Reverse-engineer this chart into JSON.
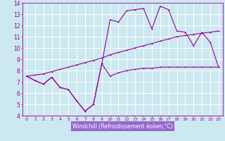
{
  "xlabel": "Windchill (Refroidissement éolien,°C)",
  "background_color": "#cce8f0",
  "grid_color": "#ffffff",
  "line_color": "#990099",
  "xlabel_bg": "#9966cc",
  "xlabel_fg": "#ffffff",
  "xlim": [
    -0.5,
    23.5
  ],
  "ylim": [
    4,
    14
  ],
  "xticks": [
    0,
    1,
    2,
    3,
    4,
    5,
    6,
    7,
    8,
    9,
    10,
    11,
    12,
    13,
    14,
    15,
    16,
    17,
    18,
    19,
    20,
    21,
    22,
    23
  ],
  "yticks": [
    4,
    5,
    6,
    7,
    8,
    9,
    10,
    11,
    12,
    13,
    14
  ],
  "line1_x": [
    0,
    1,
    2,
    3,
    4,
    5,
    6,
    7,
    8,
    9,
    10,
    11,
    12,
    13,
    14,
    15,
    16,
    17,
    18,
    19,
    20,
    21,
    22,
    23
  ],
  "line1_y": [
    7.5,
    7.1,
    6.8,
    7.4,
    6.5,
    6.3,
    5.3,
    4.4,
    5.0,
    8.6,
    7.5,
    7.8,
    8.0,
    8.1,
    8.2,
    8.2,
    8.3,
    8.3,
    8.3,
    8.3,
    8.3,
    8.3,
    8.3,
    8.3
  ],
  "line2_x": [
    0,
    1,
    2,
    3,
    4,
    5,
    6,
    7,
    8,
    9,
    10,
    11,
    12,
    13,
    14,
    15,
    16,
    17,
    18,
    19,
    20,
    21,
    22,
    23
  ],
  "line2_y": [
    7.5,
    7.1,
    6.8,
    7.4,
    6.5,
    6.3,
    5.3,
    4.4,
    5.0,
    8.6,
    12.5,
    12.3,
    13.3,
    13.4,
    13.5,
    11.7,
    13.7,
    13.4,
    11.5,
    11.4,
    10.2,
    11.4,
    10.5,
    8.3
  ],
  "line3_x": [
    0,
    1,
    2,
    3,
    4,
    5,
    6,
    7,
    8,
    9,
    10,
    11,
    12,
    13,
    14,
    15,
    16,
    17,
    18,
    19,
    20,
    21,
    22,
    23
  ],
  "line3_y": [
    7.5,
    7.6,
    7.7,
    7.9,
    8.1,
    8.3,
    8.5,
    8.7,
    8.9,
    9.1,
    9.4,
    9.6,
    9.8,
    10.0,
    10.2,
    10.4,
    10.6,
    10.8,
    11.0,
    11.1,
    11.2,
    11.3,
    11.4,
    11.5
  ]
}
